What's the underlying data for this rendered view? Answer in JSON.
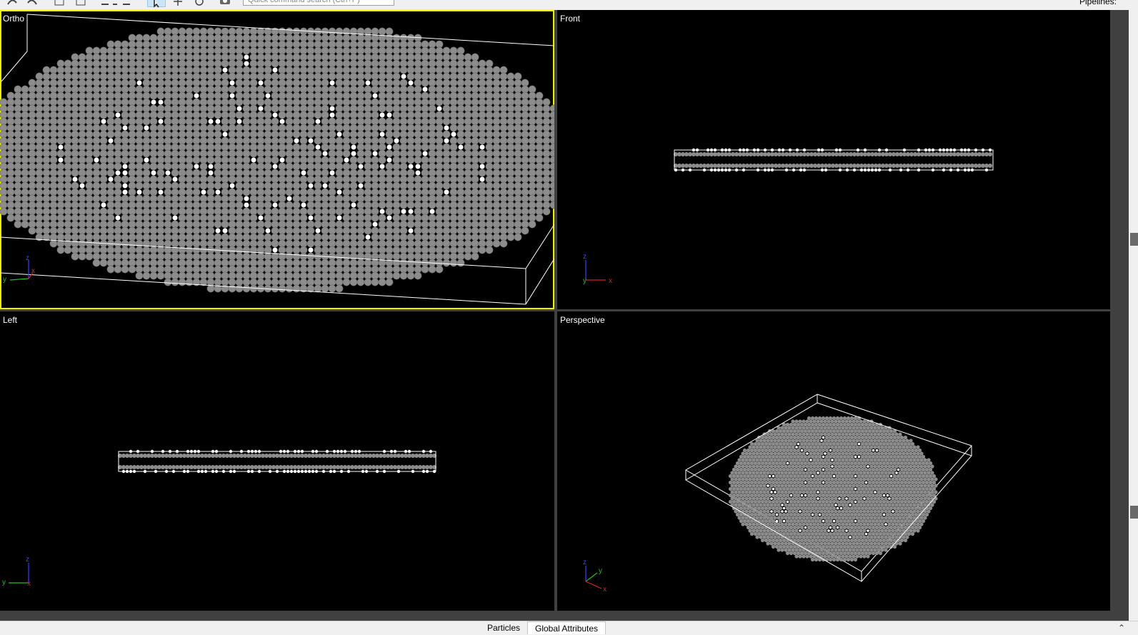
{
  "toolbar": {
    "search_placeholder": "Quick command search (Ctrl+P)",
    "pipelines_label": "Pipelines:"
  },
  "viewports": [
    {
      "caption": "Ortho",
      "active": true
    },
    {
      "caption": "Front",
      "active": false
    },
    {
      "caption": "Left",
      "active": false
    },
    {
      "caption": "Perspective",
      "active": false
    }
  ],
  "axis_labels": {
    "x": "x",
    "y": "y",
    "z": "z"
  },
  "bottom_tabs": [
    {
      "label": "Particles",
      "active": false
    },
    {
      "label": "Global Attributes",
      "active": true
    }
  ],
  "colors": {
    "active_viewport_border": "#f0f000",
    "particle_gray": "#8c8c8c",
    "particle_white": "#ffffff",
    "axis_x": "#e02020",
    "axis_y": "#20c020",
    "axis_z": "#4040ff"
  },
  "icons": [
    "undo-icon",
    "redo-icon",
    "new-icon",
    "open-icon",
    "render-icon",
    "select-mode-icon",
    "pan-mode-icon",
    "orbit-mode-icon",
    "camera-icon"
  ]
}
